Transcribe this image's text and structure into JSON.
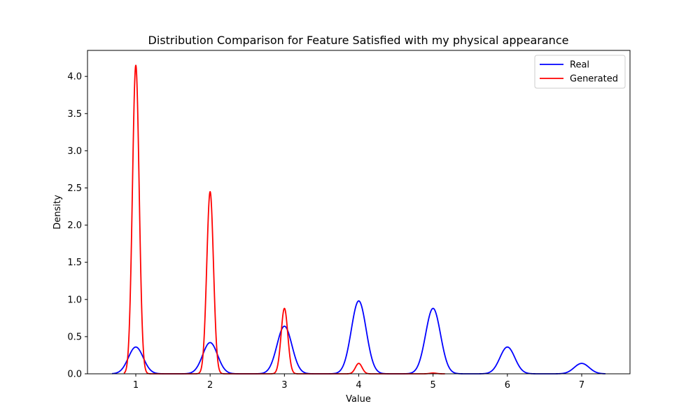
{
  "chart_data": {
    "type": "line",
    "title": "Distribution Comparison for Feature Satisfied with my physical appearance",
    "xlabel": "Value",
    "ylabel": "Density",
    "xlim": [
      0.35,
      7.65
    ],
    "ylim": [
      0,
      4.35
    ],
    "xticks": [
      1,
      2,
      3,
      4,
      5,
      6,
      7
    ],
    "yticks": [
      0.0,
      0.5,
      1.0,
      1.5,
      2.0,
      2.5,
      3.0,
      3.5,
      4.0
    ],
    "grid": false,
    "legend_position": "top-right",
    "series": [
      {
        "name": "Real",
        "color": "#0000ff",
        "x_range": [
          0.68,
          7.32
        ],
        "sigma": 0.1,
        "peaks": [
          {
            "x": 1,
            "y": 0.36
          },
          {
            "x": 2,
            "y": 0.42
          },
          {
            "x": 3,
            "y": 0.64
          },
          {
            "x": 4,
            "y": 0.98
          },
          {
            "x": 5,
            "y": 0.88
          },
          {
            "x": 6,
            "y": 0.36
          },
          {
            "x": 7,
            "y": 0.14
          }
        ]
      },
      {
        "name": "Generated",
        "color": "#ff0000",
        "x_range": [
          0.84,
          5.16
        ],
        "sigma": 0.045,
        "peaks": [
          {
            "x": 1,
            "y": 4.15
          },
          {
            "x": 2,
            "y": 2.45
          },
          {
            "x": 3,
            "y": 0.88
          },
          {
            "x": 4,
            "y": 0.14
          },
          {
            "x": 5,
            "y": 0.01
          }
        ]
      }
    ]
  }
}
